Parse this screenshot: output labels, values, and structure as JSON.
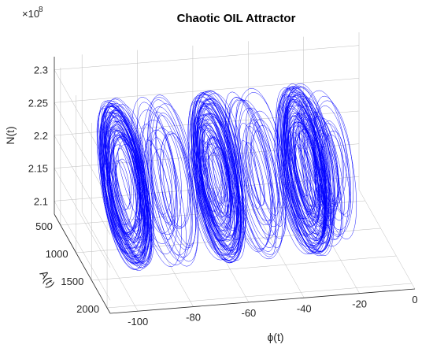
{
  "chart_data": {
    "type": "line",
    "title": "Chaotic OIL Attractor",
    "projection": "3d",
    "exponent_label": "×10",
    "exponent_power": "8",
    "x_axis": {
      "label": "ϕ(t)",
      "ticks": [
        "-100",
        "-80",
        "-60",
        "-40",
        "-20",
        "0"
      ],
      "range": [
        -110,
        0
      ]
    },
    "y_axis": {
      "label": "A(t)",
      "ticks": [
        "500",
        "1000",
        "1500",
        "2000"
      ],
      "range": [
        300,
        2100
      ]
    },
    "z_axis": {
      "label": "N(t)",
      "ticks": [
        "2.1",
        "2.15",
        "2.2",
        "2.25",
        "2.3"
      ],
      "range": [
        2.08,
        2.32
      ]
    },
    "grid": true,
    "series": [
      {
        "values": [],
        "color": "#0000ff"
      }
    ],
    "lobes": [
      {
        "phi_center": -95,
        "density": "dense"
      },
      {
        "phi_center": -80,
        "density": "sparse"
      },
      {
        "phi_center": -62,
        "density": "dense"
      },
      {
        "phi_center": -47,
        "density": "sparse"
      },
      {
        "phi_center": -30,
        "density": "dense"
      },
      {
        "phi_center": -22,
        "density": "sparse"
      }
    ]
  }
}
